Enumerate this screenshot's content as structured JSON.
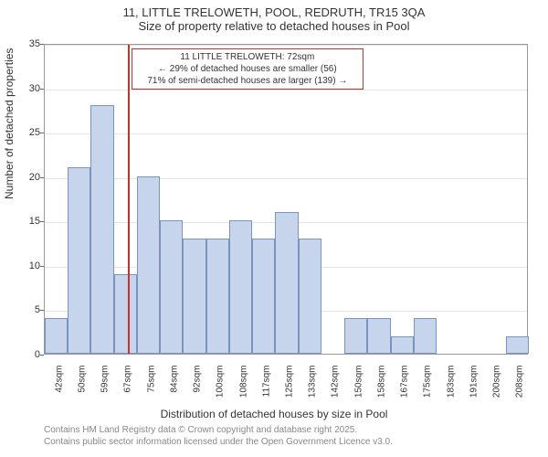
{
  "title_line1": "11, LITTLE TRELOWETH, POOL, REDRUTH, TR15 3QA",
  "title_line2": "Size of property relative to detached houses in Pool",
  "yaxis_label": "Number of detached properties",
  "xaxis_label": "Distribution of detached houses by size in Pool",
  "footer_line1": "Contains HM Land Registry data © Crown copyright and database right 2025.",
  "footer_line2": "Contains public sector information licensed under the Open Government Licence v3.0.",
  "chart": {
    "type": "histogram",
    "ylim": [
      0,
      35
    ],
    "ytick_step": 5,
    "background_color": "#ffffff",
    "grid_color": "#e4e4e4",
    "bar_fill": "#c6d5ec",
    "bar_stroke": "#7a94c0",
    "marker_color": "#c43131",
    "label_fontsize": 12,
    "tick_fontsize": 11,
    "categories": [
      "42sqm",
      "50sqm",
      "59sqm",
      "67sqm",
      "75sqm",
      "84sqm",
      "92sqm",
      "100sqm",
      "108sqm",
      "117sqm",
      "125sqm",
      "133sqm",
      "142sqm",
      "150sqm",
      "158sqm",
      "167sqm",
      "175sqm",
      "183sqm",
      "191sqm",
      "200sqm",
      "208sqm"
    ],
    "values": [
      4,
      21,
      28,
      9,
      20,
      15,
      13,
      13,
      15,
      13,
      16,
      13,
      0,
      4,
      4,
      2,
      4,
      0,
      0,
      0,
      2
    ],
    "marker_bin_index": 3,
    "marker_fraction_in_bin": 0.6,
    "annotation": {
      "line1": "11 LITTLE TRELOWETH: 72sqm",
      "line2": "← 29% of detached houses are smaller (56)",
      "line3": "71% of semi-detached houses are larger (139) →"
    }
  }
}
